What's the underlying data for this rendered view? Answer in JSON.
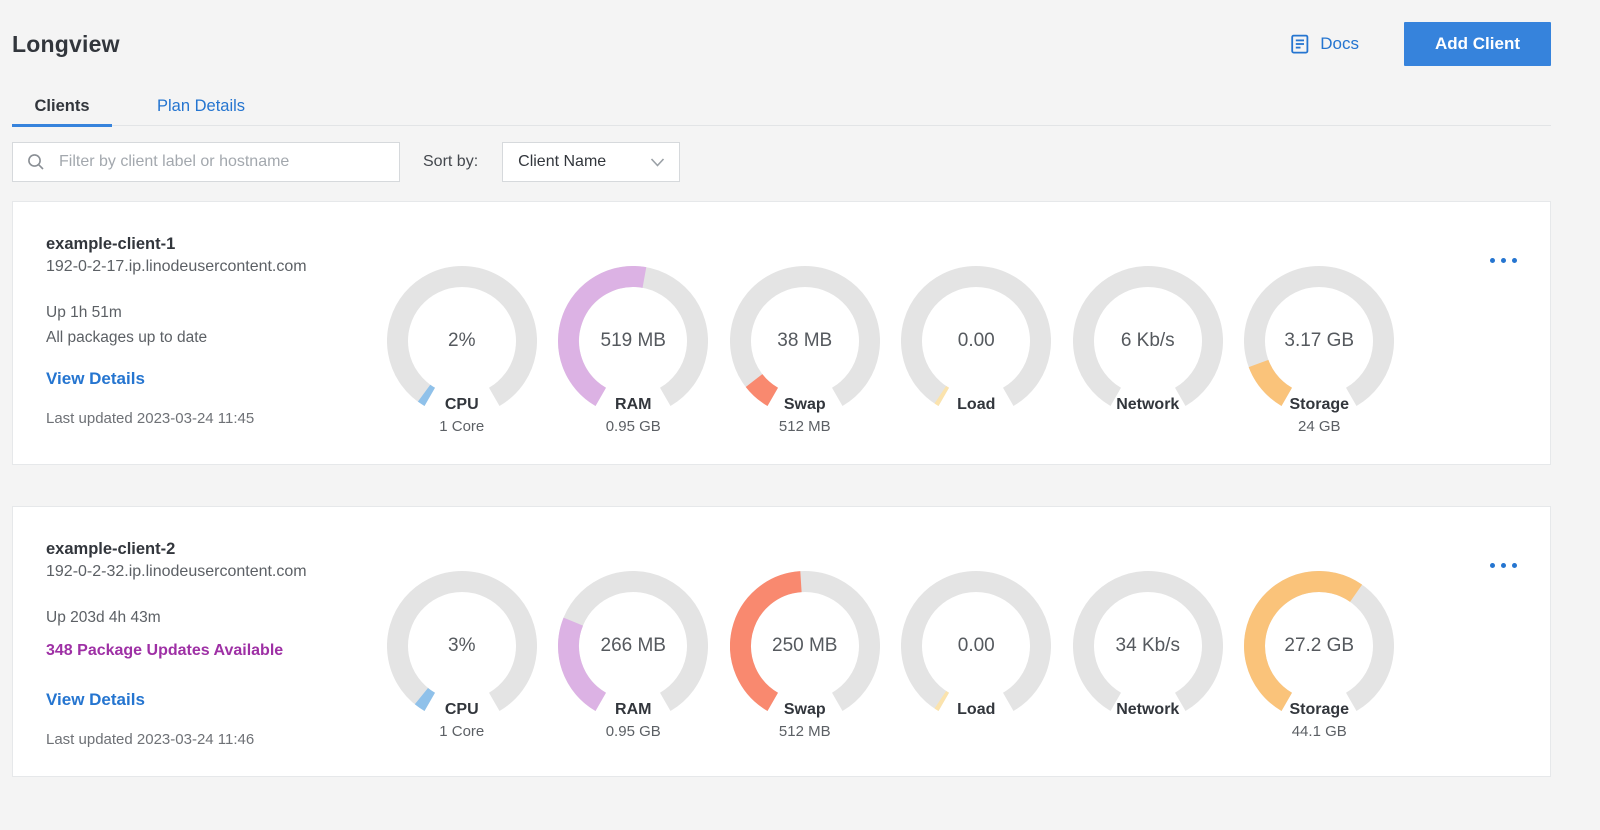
{
  "page": {
    "title": "Longview"
  },
  "header": {
    "docs_label": "Docs",
    "add_client_label": "Add Client"
  },
  "tabs": {
    "clients": "Clients",
    "plan_details": "Plan Details",
    "active": "Clients"
  },
  "filter": {
    "placeholder": "Filter by client label or hostname",
    "sort_by_label": "Sort by:",
    "sort_value": "Client Name"
  },
  "colors": {
    "accent_blue": "#3683dc",
    "link_blue": "#2575d0",
    "package_alert_purple": "#9e30a5",
    "gauge_track": "#e4e4e4",
    "cpu_arc": "#8fc1ea",
    "ram_arc": "#dcb2e4",
    "swap_arc": "#f9896f",
    "load_arc": "#fbe3ad",
    "storage_arc": "#fac37a",
    "page_background": "#f4f4f4"
  },
  "clients": [
    {
      "name": "example-client-1",
      "hostname": "192-0-2-17.ip.linodeusercontent.com",
      "uptime": "Up 1h 51m",
      "packages": "All packages up to date",
      "packages_highlighted": false,
      "view_details_label": "View Details",
      "last_updated": "Last updated 2023-03-24 11:45",
      "gauges": [
        {
          "metric": "CPU",
          "value": "2%",
          "sublabel": "1 Core",
          "percent": 2,
          "color": "#8fc1ea"
        },
        {
          "metric": "RAM",
          "value": "519 MB",
          "sublabel": "0.95 GB",
          "percent": 53.4,
          "color": "#dcb2e4"
        },
        {
          "metric": "Swap",
          "value": "38 MB",
          "sublabel": "512 MB",
          "percent": 7.4,
          "color": "#f9896f"
        },
        {
          "metric": "Load",
          "value": "0.00",
          "sublabel": "",
          "percent": 1.2,
          "color": "#fbe3ad"
        },
        {
          "metric": "Network",
          "value": "6 Kb/s",
          "sublabel": "",
          "percent": 0,
          "color": "#e4e4e4"
        },
        {
          "metric": "Storage",
          "value": "3.17 GB",
          "sublabel": "24 GB",
          "percent": 13.2,
          "color": "#fac37a"
        }
      ]
    },
    {
      "name": "example-client-2",
      "hostname": "192-0-2-32.ip.linodeusercontent.com",
      "uptime": "Up 203d 4h 43m",
      "packages": "348 Package Updates Available",
      "packages_highlighted": true,
      "view_details_label": "View Details",
      "last_updated": "Last updated 2023-03-24 11:46",
      "gauges": [
        {
          "metric": "CPU",
          "value": "3%",
          "sublabel": "1 Core",
          "percent": 3,
          "color": "#8fc1ea"
        },
        {
          "metric": "RAM",
          "value": "266 MB",
          "sublabel": "0.95 GB",
          "percent": 27.4,
          "color": "#dcb2e4"
        },
        {
          "metric": "Swap",
          "value": "250 MB",
          "sublabel": "512 MB",
          "percent": 48.8,
          "color": "#f9896f"
        },
        {
          "metric": "Load",
          "value": "0.00",
          "sublabel": "",
          "percent": 1.2,
          "color": "#fbe3ad"
        },
        {
          "metric": "Network",
          "value": "34 Kb/s",
          "sublabel": "",
          "percent": 0,
          "color": "#e4e4e4"
        },
        {
          "metric": "Storage",
          "value": "27.2 GB",
          "sublabel": "44.1 GB",
          "percent": 61.7,
          "color": "#fac37a"
        }
      ]
    }
  ]
}
